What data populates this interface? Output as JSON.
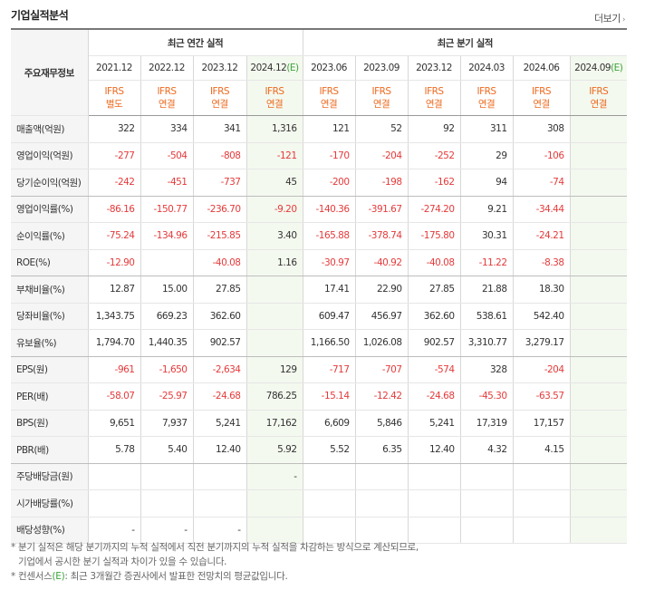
{
  "title": "기업실적분석",
  "more": "더보기",
  "row_header": "주요재무정보",
  "annual_header": "최근 연간 실적",
  "quarter_header": "최근 분기 실적",
  "periods": [
    {
      "label": "2021.12",
      "est": false,
      "std1": "IFRS",
      "std2": "별도"
    },
    {
      "label": "2022.12",
      "est": false,
      "std1": "IFRS",
      "std2": "연결"
    },
    {
      "label": "2023.12",
      "est": false,
      "std1": "IFRS",
      "std2": "연결"
    },
    {
      "label": "2024.12",
      "est": true,
      "std1": "IFRS",
      "std2": "연결"
    },
    {
      "label": "2023.06",
      "est": false,
      "std1": "IFRS",
      "std2": "연결"
    },
    {
      "label": "2023.09",
      "est": false,
      "std1": "IFRS",
      "std2": "연결"
    },
    {
      "label": "2023.12",
      "est": false,
      "std1": "IFRS",
      "std2": "연결"
    },
    {
      "label": "2024.03",
      "est": false,
      "std1": "IFRS",
      "std2": "연결"
    },
    {
      "label": "2024.06",
      "est": false,
      "std1": "IFRS",
      "std2": "연결"
    },
    {
      "label": "2024.09",
      "est": true,
      "std1": "IFRS",
      "std2": "연결"
    }
  ],
  "est_mark": "(E)",
  "rows": [
    {
      "label": "매출액(억원)",
      "values": [
        "322",
        "334",
        "341",
        "1,316",
        "121",
        "52",
        "92",
        "311",
        "308",
        ""
      ]
    },
    {
      "label": "영업이익(억원)",
      "values": [
        "-277",
        "-504",
        "-808",
        "-121",
        "-170",
        "-204",
        "-252",
        "29",
        "-106",
        ""
      ]
    },
    {
      "label": "당기순이익(억원)",
      "values": [
        "-242",
        "-451",
        "-737",
        "45",
        "-200",
        "-198",
        "-162",
        "94",
        "-74",
        ""
      ],
      "group_end": true
    },
    {
      "label": "영업이익률(%)",
      "values": [
        "-86.16",
        "-150.77",
        "-236.70",
        "-9.20",
        "-140.36",
        "-391.67",
        "-274.20",
        "9.21",
        "-34.44",
        ""
      ]
    },
    {
      "label": "순이익률(%)",
      "values": [
        "-75.24",
        "-134.96",
        "-215.85",
        "3.40",
        "-165.88",
        "-378.74",
        "-175.80",
        "30.31",
        "-24.21",
        ""
      ]
    },
    {
      "label": "ROE(%)",
      "values": [
        "-12.90",
        "",
        "-40.08",
        "1.16",
        "-30.97",
        "-40.92",
        "-40.08",
        "-11.22",
        "-8.38",
        ""
      ],
      "group_end": true
    },
    {
      "label": "부채비율(%)",
      "values": [
        "12.87",
        "15.00",
        "27.85",
        "",
        "17.41",
        "22.90",
        "27.85",
        "21.88",
        "18.30",
        ""
      ]
    },
    {
      "label": "당좌비율(%)",
      "values": [
        "1,343.75",
        "669.23",
        "362.60",
        "",
        "609.47",
        "456.97",
        "362.60",
        "538.61",
        "542.40",
        ""
      ]
    },
    {
      "label": "유보율(%)",
      "values": [
        "1,794.70",
        "1,440.35",
        "902.57",
        "",
        "1,166.50",
        "1,026.08",
        "902.57",
        "3,310.77",
        "3,279.17",
        ""
      ],
      "group_end": true
    },
    {
      "label": "EPS(원)",
      "values": [
        "-961",
        "-1,650",
        "-2,634",
        "129",
        "-717",
        "-707",
        "-574",
        "328",
        "-204",
        ""
      ]
    },
    {
      "label": "PER(배)",
      "values": [
        "-58.07",
        "-25.97",
        "-24.68",
        "786.25",
        "-15.14",
        "-12.42",
        "-24.68",
        "-45.30",
        "-63.57",
        ""
      ]
    },
    {
      "label": "BPS(원)",
      "values": [
        "9,651",
        "7,937",
        "5,241",
        "17,162",
        "6,609",
        "5,846",
        "5,241",
        "17,319",
        "17,157",
        ""
      ]
    },
    {
      "label": "PBR(배)",
      "values": [
        "5.78",
        "5.40",
        "12.40",
        "5.92",
        "5.52",
        "6.35",
        "12.40",
        "4.32",
        "4.15",
        ""
      ],
      "group_end": true
    },
    {
      "label": "주당배당금(원)",
      "values": [
        "",
        "",
        "",
        "-",
        "",
        "",
        "",
        "",
        "",
        ""
      ]
    },
    {
      "label": "시가배당률(%)",
      "values": [
        "",
        "",
        "",
        "",
        "",
        "",
        "",
        "",
        "",
        ""
      ]
    },
    {
      "label": "배당성향(%)",
      "values": [
        "-",
        "-",
        "-",
        "",
        "",
        "",
        "",
        "",
        "",
        ""
      ]
    }
  ],
  "notes": {
    "line1": "* 분기 실적은 해당 분기까지의 누적 실적에서 직전 분기까지의 누적 실적을 차감하는 방식으로 계산되므로,",
    "line2": "기업에서 공시한 분기 실적과 차이가 있을 수 있습니다.",
    "line3_prefix": "* 컨센서스",
    "line3_mark": "(E)",
    "line3_suffix": ": 최근 3개월간 증권사에서 발표한 전망치의 평균값입니다."
  }
}
